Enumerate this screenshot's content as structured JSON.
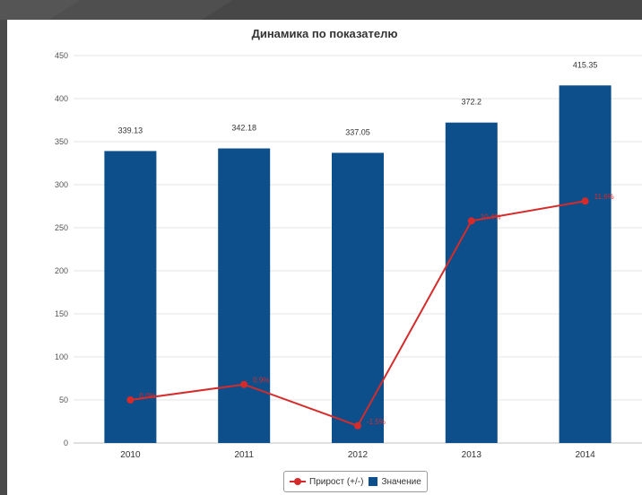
{
  "chart_data": {
    "type": "bar",
    "title": "Динамика по показателю",
    "categories": [
      "2010",
      "2011",
      "2012",
      "2013",
      "2014"
    ],
    "ylim": [
      0,
      450
    ],
    "yticks": [
      0,
      50,
      100,
      150,
      200,
      250,
      300,
      350,
      400,
      450
    ],
    "grid": true,
    "legend_position": "bottom",
    "series": [
      {
        "name": "Значение",
        "kind": "bar",
        "color": "#0d4f8b",
        "values": [
          339.13,
          342.18,
          337.05,
          372.2,
          415.35
        ],
        "labels": [
          "339.13",
          "342.18",
          "337.05",
          "372.2",
          "415.35"
        ]
      },
      {
        "name": "Прирост (+/-)",
        "kind": "line",
        "color": "#d62b2b",
        "values": [
          50,
          68,
          20,
          258,
          281
        ],
        "labels": [
          "0.0%",
          "0.9%",
          "-1.5%",
          "10.4%",
          "11.6%"
        ]
      }
    ]
  },
  "legend": {
    "line_label": "Прирост (+/-)",
    "bar_label": "Значение"
  }
}
